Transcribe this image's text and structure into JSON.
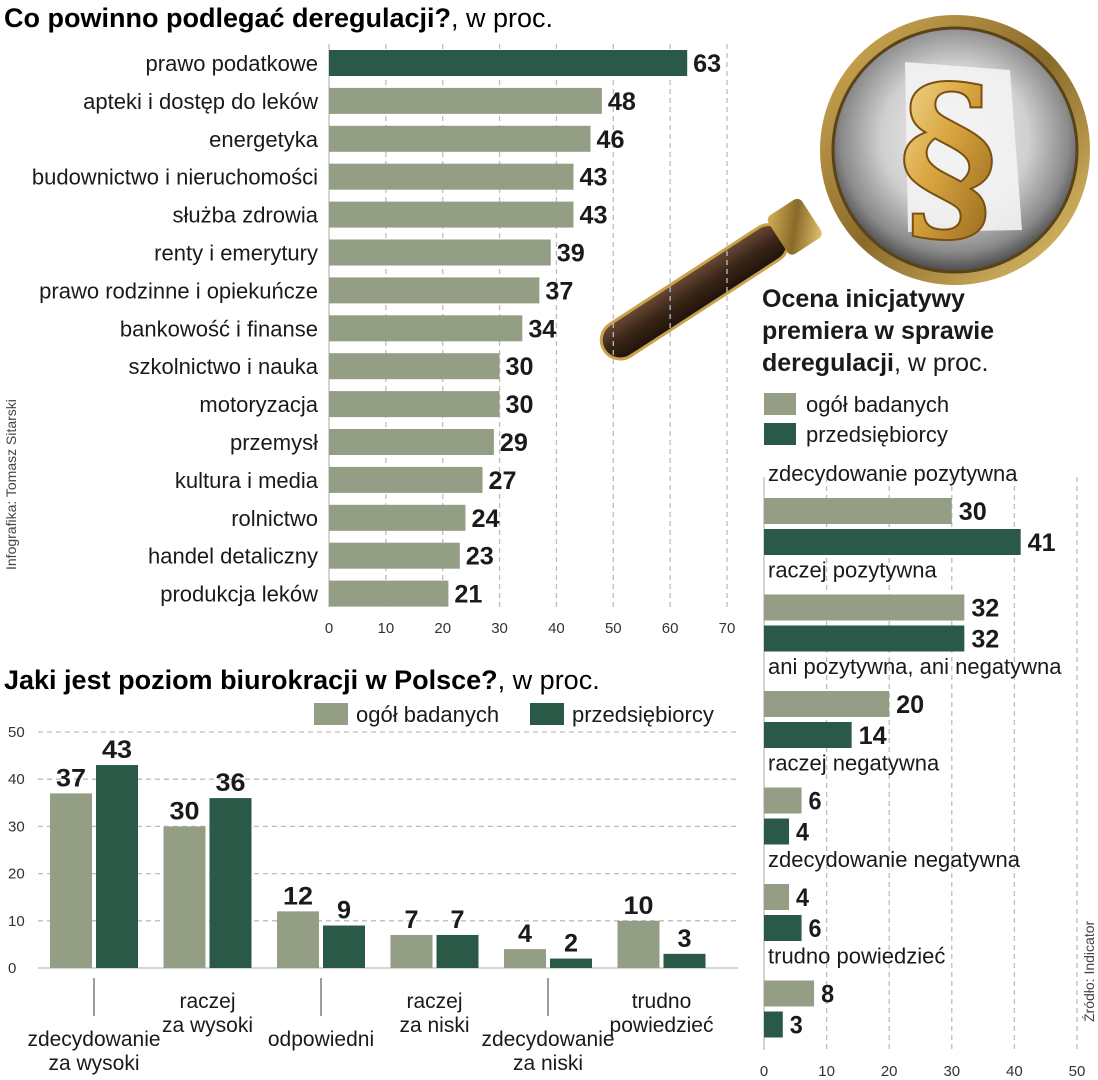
{
  "credit": "Infografika: Tomasz Sitarski",
  "source": "Źródło: Indicator",
  "colors": {
    "light": "#949e85",
    "dark": "#2a5a47",
    "grid": "#bdbdbd",
    "text": "#1a1a1a"
  },
  "chart_data": [
    {
      "type": "bar",
      "orientation": "horizontal",
      "title": "Co powinno podlegać deregulacji?",
      "title_suffix": ", w proc.",
      "categories": [
        "prawo podatkowe",
        "apteki i dostęp do leków",
        "energetyka",
        "budownictwo i nieruchomości",
        "służba zdrowia",
        "renty i emerytury",
        "prawo rodzinne i opiekuńcze",
        "bankowość i finanse",
        "szkolnictwo i nauka",
        "motoryzacja",
        "przemysł",
        "kultura i media",
        "rolnictwo",
        "handel detaliczny",
        "produkcja leków"
      ],
      "values": [
        63,
        48,
        46,
        43,
        43,
        39,
        37,
        34,
        30,
        30,
        29,
        27,
        24,
        23,
        21
      ],
      "highlight_index": 0,
      "xlim": [
        0,
        70
      ],
      "xticks": [
        0,
        10,
        20,
        30,
        40,
        50,
        60,
        70
      ],
      "grid": true
    },
    {
      "type": "bar",
      "orientation": "vertical",
      "title": "Jaki jest poziom biurokracji w Polsce?",
      "title_suffix": ", w proc.",
      "categories": [
        [
          "zdecydowanie",
          "za wysoki"
        ],
        [
          "raczej",
          "za wysoki"
        ],
        [
          "odpowiedni"
        ],
        [
          "raczej",
          "za niski"
        ],
        [
          "zdecydowanie",
          "za niski"
        ],
        [
          "trudno",
          "powiedzieć"
        ]
      ],
      "series": [
        {
          "name": "ogół badanych",
          "values": [
            37,
            30,
            12,
            7,
            4,
            10
          ]
        },
        {
          "name": "przedsiębiorcy",
          "values": [
            43,
            36,
            9,
            7,
            2,
            3
          ]
        }
      ],
      "ylim": [
        0,
        50
      ],
      "yticks": [
        0,
        10,
        20,
        30,
        40,
        50
      ],
      "legend": "top-right",
      "grid": true
    },
    {
      "type": "bar",
      "orientation": "horizontal",
      "title": "Ocena inicjatywy premiera w sprawie deregulacji",
      "title_lines": [
        "Ocena inicjatywy",
        "premiera w sprawie",
        "deregulacji"
      ],
      "title_suffix": ", w proc.",
      "categories": [
        "zdecydowanie pozytywna",
        "raczej pozytywna",
        "ani pozytywna, ani negatywna",
        "raczej negatywna",
        "zdecydowanie negatywna",
        "trudno powiedzieć"
      ],
      "series": [
        {
          "name": "ogół badanych",
          "values": [
            30,
            32,
            20,
            6,
            4,
            8
          ]
        },
        {
          "name": "przedsiębiorcy",
          "values": [
            41,
            32,
            14,
            4,
            6,
            3
          ]
        }
      ],
      "xlim": [
        0,
        50
      ],
      "xticks": [
        0,
        10,
        20,
        30,
        40,
        50
      ],
      "legend": "top-left",
      "grid": true
    }
  ]
}
